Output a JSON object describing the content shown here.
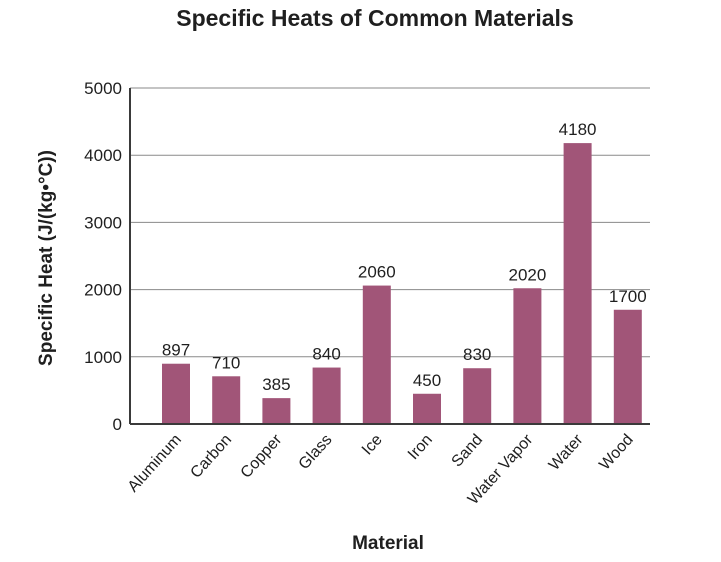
{
  "chart_data": {
    "type": "bar",
    "title": "Specific Heats of Common Materials",
    "xlabel": "Material",
    "ylabel": "Specific Heat (J/(kg•°C))",
    "categories": [
      "Aluminum",
      "Carbon",
      "Copper",
      "Glass",
      "Ice",
      "Iron",
      "Sand",
      "Water Vapor",
      "Water",
      "Wood"
    ],
    "values": [
      897,
      710,
      385,
      840,
      2060,
      450,
      830,
      2020,
      4180,
      1700
    ],
    "data_labels": [
      "897",
      "710",
      "385",
      "840",
      "2060",
      "450",
      "830",
      "2020",
      "4180",
      "1700"
    ],
    "ylim": [
      0,
      5000
    ],
    "yticks": [
      0,
      1000,
      2000,
      3000,
      4000,
      5000
    ],
    "ytick_labels": [
      "0",
      "1000",
      "2000",
      "3000",
      "4000",
      "5000"
    ],
    "grid": true,
    "bar_color": "#a15578"
  }
}
